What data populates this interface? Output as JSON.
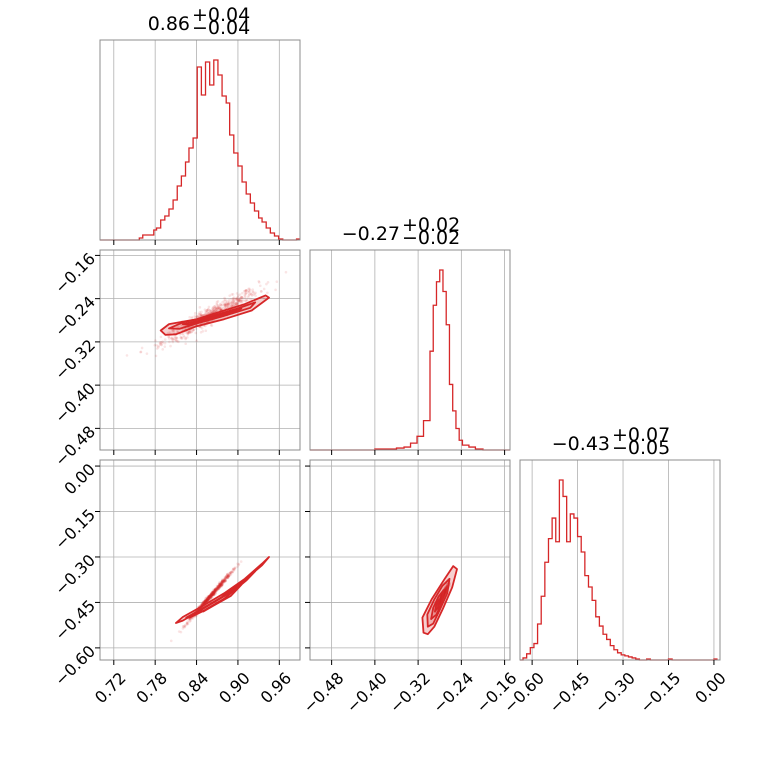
{
  "chart_data": {
    "type": "corner",
    "color": "#d62728",
    "grid": true,
    "parameters": [
      {
        "title": {
          "median": "0.86",
          "plus": "+0.04",
          "minus": "−0.04"
        },
        "range": [
          0.7,
          0.99
        ],
        "ticks": [
          0.72,
          0.78,
          0.84,
          0.9,
          0.96
        ],
        "tick_labels": [
          "0.72",
          "0.78",
          "0.84",
          "0.90",
          "0.96"
        ],
        "hist": {
          "bins": [
            {
              "x0": 0.7,
              "x1": 0.757,
              "h": 0
            },
            {
              "x0": 0.757,
              "x1": 0.762,
              "h": 2
            },
            {
              "x0": 0.762,
              "x1": 0.778,
              "h": 5
            },
            {
              "x0": 0.778,
              "x1": 0.782,
              "h": 10
            },
            {
              "x0": 0.782,
              "x1": 0.788,
              "h": 12
            },
            {
              "x0": 0.788,
              "x1": 0.794,
              "h": 20
            },
            {
              "x0": 0.794,
              "x1": 0.8,
              "h": 24
            },
            {
              "x0": 0.8,
              "x1": 0.806,
              "h": 31
            },
            {
              "x0": 0.806,
              "x1": 0.812,
              "h": 40
            },
            {
              "x0": 0.812,
              "x1": 0.818,
              "h": 54
            },
            {
              "x0": 0.818,
              "x1": 0.824,
              "h": 64
            },
            {
              "x0": 0.824,
              "x1": 0.829,
              "h": 78
            },
            {
              "x0": 0.829,
              "x1": 0.835,
              "h": 92
            },
            {
              "x0": 0.835,
              "x1": 0.841,
              "h": 102
            },
            {
              "x0": 0.841,
              "x1": 0.847,
              "h": 173
            },
            {
              "x0": 0.847,
              "x1": 0.853,
              "h": 145
            },
            {
              "x0": 0.853,
              "x1": 0.859,
              "h": 178
            },
            {
              "x0": 0.859,
              "x1": 0.865,
              "h": 155
            },
            {
              "x0": 0.865,
              "x1": 0.871,
              "h": 180
            },
            {
              "x0": 0.871,
              "x1": 0.877,
              "h": 165
            },
            {
              "x0": 0.877,
              "x1": 0.883,
              "h": 144
            },
            {
              "x0": 0.883,
              "x1": 0.888,
              "h": 137
            },
            {
              "x0": 0.888,
              "x1": 0.894,
              "h": 105
            },
            {
              "x0": 0.894,
              "x1": 0.9,
              "h": 87
            },
            {
              "x0": 0.9,
              "x1": 0.906,
              "h": 74
            },
            {
              "x0": 0.906,
              "x1": 0.912,
              "h": 58
            },
            {
              "x0": 0.912,
              "x1": 0.918,
              "h": 46
            },
            {
              "x0": 0.918,
              "x1": 0.924,
              "h": 37
            },
            {
              "x0": 0.924,
              "x1": 0.93,
              "h": 29
            },
            {
              "x0": 0.93,
              "x1": 0.935,
              "h": 22
            },
            {
              "x0": 0.935,
              "x1": 0.941,
              "h": 18
            },
            {
              "x0": 0.941,
              "x1": 0.947,
              "h": 12
            },
            {
              "x0": 0.947,
              "x1": 0.953,
              "h": 7
            },
            {
              "x0": 0.953,
              "x1": 0.959,
              "h": 4
            },
            {
              "x0": 0.959,
              "x1": 0.965,
              "h": 1
            },
            {
              "x0": 0.965,
              "x1": 0.985,
              "h": 0
            },
            {
              "x0": 0.985,
              "x1": 0.99,
              "h": 1
            }
          ]
        }
      },
      {
        "title": {
          "median": "−0.27",
          "plus": "+0.02",
          "minus": "−0.02"
        },
        "range": [
          -0.52,
          -0.15
        ],
        "ticks": [
          -0.48,
          -0.4,
          -0.32,
          -0.24,
          -0.16
        ],
        "tick_labels": [
          "−0.48",
          "−0.40",
          "−0.32",
          "−0.24",
          "−0.16"
        ],
        "hist": {
          "bins": [
            {
              "x0": -0.52,
              "x1": -0.4,
              "h": 0
            },
            {
              "x0": -0.4,
              "x1": -0.36,
              "h": 1
            },
            {
              "x0": -0.36,
              "x1": -0.346,
              "h": 2
            },
            {
              "x0": -0.346,
              "x1": -0.334,
              "h": 3
            },
            {
              "x0": -0.334,
              "x1": -0.322,
              "h": 7
            },
            {
              "x0": -0.322,
              "x1": -0.31,
              "h": 14
            },
            {
              "x0": -0.31,
              "x1": -0.298,
              "h": 30
            },
            {
              "x0": -0.298,
              "x1": -0.292,
              "h": 101
            },
            {
              "x0": -0.292,
              "x1": -0.286,
              "h": 148
            },
            {
              "x0": -0.286,
              "x1": -0.28,
              "h": 172
            },
            {
              "x0": -0.28,
              "x1": -0.274,
              "h": 184
            },
            {
              "x0": -0.274,
              "x1": -0.268,
              "h": 162
            },
            {
              "x0": -0.268,
              "x1": -0.262,
              "h": 128
            },
            {
              "x0": -0.262,
              "x1": -0.256,
              "h": 67
            },
            {
              "x0": -0.256,
              "x1": -0.25,
              "h": 40
            },
            {
              "x0": -0.25,
              "x1": -0.244,
              "h": 22
            },
            {
              "x0": -0.244,
              "x1": -0.238,
              "h": 10
            },
            {
              "x0": -0.238,
              "x1": -0.226,
              "h": 5
            },
            {
              "x0": -0.226,
              "x1": -0.214,
              "h": 3
            },
            {
              "x0": -0.214,
              "x1": -0.2,
              "h": 1
            },
            {
              "x0": -0.2,
              "x1": -0.15,
              "h": 0
            }
          ]
        }
      },
      {
        "title": {
          "median": "−0.43",
          "plus": "+0.07",
          "minus": "−0.05"
        },
        "range": [
          -0.64,
          0.02
        ],
        "ticks": [
          -0.6,
          -0.45,
          -0.3,
          -0.15,
          0.0
        ],
        "tick_labels": [
          "−0.60",
          "−0.45",
          "−0.30",
          "−0.15",
          "0.00"
        ],
        "hist": {
          "bins": [
            {
              "x0": -0.64,
              "x1": -0.63,
              "h": 0
            },
            {
              "x0": -0.63,
              "x1": -0.618,
              "h": 2
            },
            {
              "x0": -0.618,
              "x1": -0.606,
              "h": 6
            },
            {
              "x0": -0.606,
              "x1": -0.594,
              "h": 12
            },
            {
              "x0": -0.594,
              "x1": -0.582,
              "h": 16
            },
            {
              "x0": -0.582,
              "x1": -0.57,
              "h": 35
            },
            {
              "x0": -0.57,
              "x1": -0.558,
              "h": 62
            },
            {
              "x0": -0.558,
              "x1": -0.546,
              "h": 95
            },
            {
              "x0": -0.546,
              "x1": -0.534,
              "h": 118
            },
            {
              "x0": -0.534,
              "x1": -0.522,
              "h": 138
            },
            {
              "x0": -0.522,
              "x1": -0.51,
              "h": 115
            },
            {
              "x0": -0.51,
              "x1": -0.498,
              "h": 175
            },
            {
              "x0": -0.498,
              "x1": -0.486,
              "h": 159
            },
            {
              "x0": -0.486,
              "x1": -0.474,
              "h": 115
            },
            {
              "x0": -0.474,
              "x1": -0.462,
              "h": 142
            },
            {
              "x0": -0.462,
              "x1": -0.45,
              "h": 138
            },
            {
              "x0": -0.45,
              "x1": -0.438,
              "h": 120
            },
            {
              "x0": -0.438,
              "x1": -0.426,
              "h": 105
            },
            {
              "x0": -0.426,
              "x1": -0.414,
              "h": 82
            },
            {
              "x0": -0.414,
              "x1": -0.402,
              "h": 71
            },
            {
              "x0": -0.402,
              "x1": -0.39,
              "h": 58
            },
            {
              "x0": -0.39,
              "x1": -0.378,
              "h": 42
            },
            {
              "x0": -0.378,
              "x1": -0.366,
              "h": 33
            },
            {
              "x0": -0.366,
              "x1": -0.354,
              "h": 25
            },
            {
              "x0": -0.354,
              "x1": -0.342,
              "h": 20
            },
            {
              "x0": -0.342,
              "x1": -0.33,
              "h": 14
            },
            {
              "x0": -0.33,
              "x1": -0.318,
              "h": 10
            },
            {
              "x0": -0.318,
              "x1": -0.306,
              "h": 7
            },
            {
              "x0": -0.306,
              "x1": -0.294,
              "h": 5
            },
            {
              "x0": -0.294,
              "x1": -0.282,
              "h": 4
            },
            {
              "x0": -0.282,
              "x1": -0.27,
              "h": 3
            },
            {
              "x0": -0.27,
              "x1": -0.258,
              "h": 2
            },
            {
              "x0": -0.258,
              "x1": -0.246,
              "h": 1
            },
            {
              "x0": -0.246,
              "x1": -0.222,
              "h": 0
            },
            {
              "x0": -0.222,
              "x1": -0.21,
              "h": 1
            },
            {
              "x0": -0.21,
              "x1": -0.15,
              "h": 0
            },
            {
              "x0": -0.15,
              "x1": -0.138,
              "h": 1
            },
            {
              "x0": -0.138,
              "x1": 0.0,
              "h": 0
            },
            {
              "x0": 0.0,
              "x1": 0.012,
              "h": 1
            }
          ]
        }
      }
    ],
    "pairs": [
      {
        "row": 1,
        "col": 0,
        "contours": [
          [
            [
              0.788,
              -0.299
            ],
            [
              0.8,
              -0.287
            ],
            [
              0.84,
              -0.278
            ],
            [
              0.88,
              -0.262
            ],
            [
              0.91,
              -0.25
            ],
            [
              0.94,
              -0.234
            ],
            [
              0.945,
              -0.238
            ],
            [
              0.92,
              -0.262
            ],
            [
              0.88,
              -0.278
            ],
            [
              0.84,
              -0.291
            ],
            [
              0.81,
              -0.306
            ],
            [
              0.795,
              -0.307
            ]
          ],
          [
            [
              0.8,
              -0.295
            ],
            [
              0.82,
              -0.284
            ],
            [
              0.86,
              -0.273
            ],
            [
              0.9,
              -0.258
            ],
            [
              0.925,
              -0.247
            ],
            [
              0.918,
              -0.257
            ],
            [
              0.88,
              -0.272
            ],
            [
              0.84,
              -0.286
            ],
            [
              0.815,
              -0.296
            ]
          ],
          [
            [
              0.82,
              -0.287
            ],
            [
              0.85,
              -0.279
            ],
            [
              0.88,
              -0.268
            ],
            [
              0.905,
              -0.258
            ],
            [
              0.895,
              -0.265
            ],
            [
              0.86,
              -0.277
            ],
            [
              0.83,
              -0.288
            ]
          ],
          [
            [
              0.845,
              -0.28
            ],
            [
              0.87,
              -0.272
            ],
            [
              0.885,
              -0.267
            ],
            [
              0.872,
              -0.274
            ],
            [
              0.85,
              -0.281
            ]
          ]
        ],
        "cloud": {
          "center": [
            0.86,
            -0.272
          ],
          "slope": 0.68,
          "sd_major": 0.042,
          "sd_minor": 0.008,
          "n": 700
        }
      },
      {
        "row": 2,
        "col": 0,
        "contours": [
          [
            [
              0.81,
              -0.518
            ],
            [
              0.82,
              -0.498
            ],
            [
              0.85,
              -0.46
            ],
            [
              0.88,
              -0.42
            ],
            [
              0.91,
              -0.372
            ],
            [
              0.935,
              -0.322
            ],
            [
              0.945,
              -0.3
            ],
            [
              0.935,
              -0.327
            ],
            [
              0.905,
              -0.385
            ],
            [
              0.875,
              -0.435
            ],
            [
              0.845,
              -0.477
            ],
            [
              0.82,
              -0.51
            ]
          ],
          [
            [
              0.825,
              -0.5
            ],
            [
              0.85,
              -0.468
            ],
            [
              0.88,
              -0.428
            ],
            [
              0.905,
              -0.385
            ],
            [
              0.925,
              -0.347
            ],
            [
              0.912,
              -0.378
            ],
            [
              0.88,
              -0.438
            ],
            [
              0.85,
              -0.478
            ],
            [
              0.83,
              -0.5
            ]
          ],
          [
            [
              0.845,
              -0.476
            ],
            [
              0.865,
              -0.45
            ],
            [
              0.89,
              -0.416
            ],
            [
              0.905,
              -0.392
            ],
            [
              0.89,
              -0.428
            ],
            [
              0.865,
              -0.46
            ],
            [
              0.85,
              -0.48
            ]
          ]
        ],
        "cloud": {
          "center": [
            0.86,
            -0.43
          ],
          "slope": 2.6,
          "sd_major": 0.042,
          "sd_minor": 0.004,
          "n": 700
        }
      },
      {
        "row": 2,
        "col": 1,
        "contours": [
          [
            [
              -0.31,
              -0.55
            ],
            [
              -0.312,
              -0.5
            ],
            [
              -0.295,
              -0.44
            ],
            [
              -0.27,
              -0.37
            ],
            [
              -0.255,
              -0.33
            ],
            [
              -0.248,
              -0.34
            ],
            [
              -0.257,
              -0.4
            ],
            [
              -0.274,
              -0.47
            ],
            [
              -0.29,
              -0.53
            ],
            [
              -0.302,
              -0.555
            ]
          ],
          [
            [
              -0.302,
              -0.53
            ],
            [
              -0.303,
              -0.49
            ],
            [
              -0.29,
              -0.44
            ],
            [
              -0.275,
              -0.395
            ],
            [
              -0.262,
              -0.372
            ],
            [
              -0.266,
              -0.42
            ],
            [
              -0.28,
              -0.475
            ],
            [
              -0.292,
              -0.52
            ]
          ],
          [
            [
              -0.296,
              -0.505
            ],
            [
              -0.292,
              -0.468
            ],
            [
              -0.282,
              -0.43
            ],
            [
              -0.273,
              -0.41
            ],
            [
              -0.276,
              -0.45
            ],
            [
              -0.286,
              -0.49
            ]
          ],
          [
            [
              -0.289,
              -0.48
            ],
            [
              -0.286,
              -0.455
            ],
            [
              -0.281,
              -0.44
            ],
            [
              -0.283,
              -0.466
            ]
          ]
        ],
        "cloud": {
          "center": [
            -0.275,
            -0.43
          ],
          "slope": 3.5,
          "sd_major": 0.017,
          "sd_minor": 0.006,
          "n": 700
        }
      }
    ]
  }
}
